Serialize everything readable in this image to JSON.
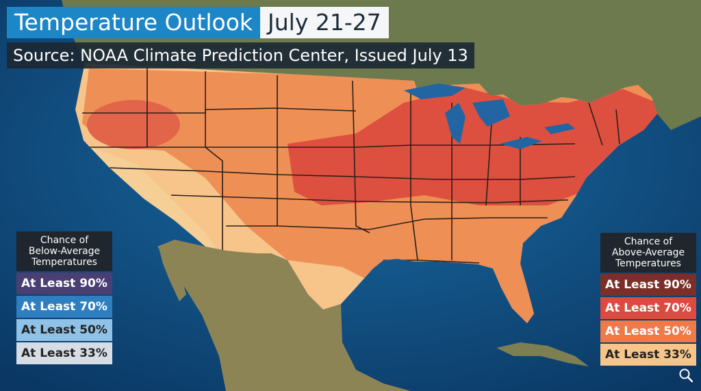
{
  "header": {
    "title": "Temperature Outlook",
    "dates": "July 21-27",
    "source": "Source: NOAA Climate Prediction Center, Issued July 13"
  },
  "legend_below": {
    "heading": [
      "Chance of",
      "Below-Average",
      "Temperatures"
    ],
    "items": [
      {
        "label": "At Least 90%",
        "color": "#4a3f73"
      },
      {
        "label": "At Least 70%",
        "color": "#2f7fc0"
      },
      {
        "label": "At Least 50%",
        "color": "#8fc2e6"
      },
      {
        "label": "At Least 33%",
        "color": "#d6dde4"
      }
    ]
  },
  "legend_above": {
    "heading": [
      "Chance of",
      "Above-Average",
      "Temperatures"
    ],
    "items": [
      {
        "label": "At Least 90%",
        "color": "#7a2f28"
      },
      {
        "label": "At Least 70%",
        "color": "#dc4b3f"
      },
      {
        "label": "At Least 50%",
        "color": "#ee7a4a"
      },
      {
        "label": "At Least 33%",
        "color": "#f7c48a"
      }
    ]
  },
  "icons": {
    "zoom": "magnifier-icon"
  }
}
